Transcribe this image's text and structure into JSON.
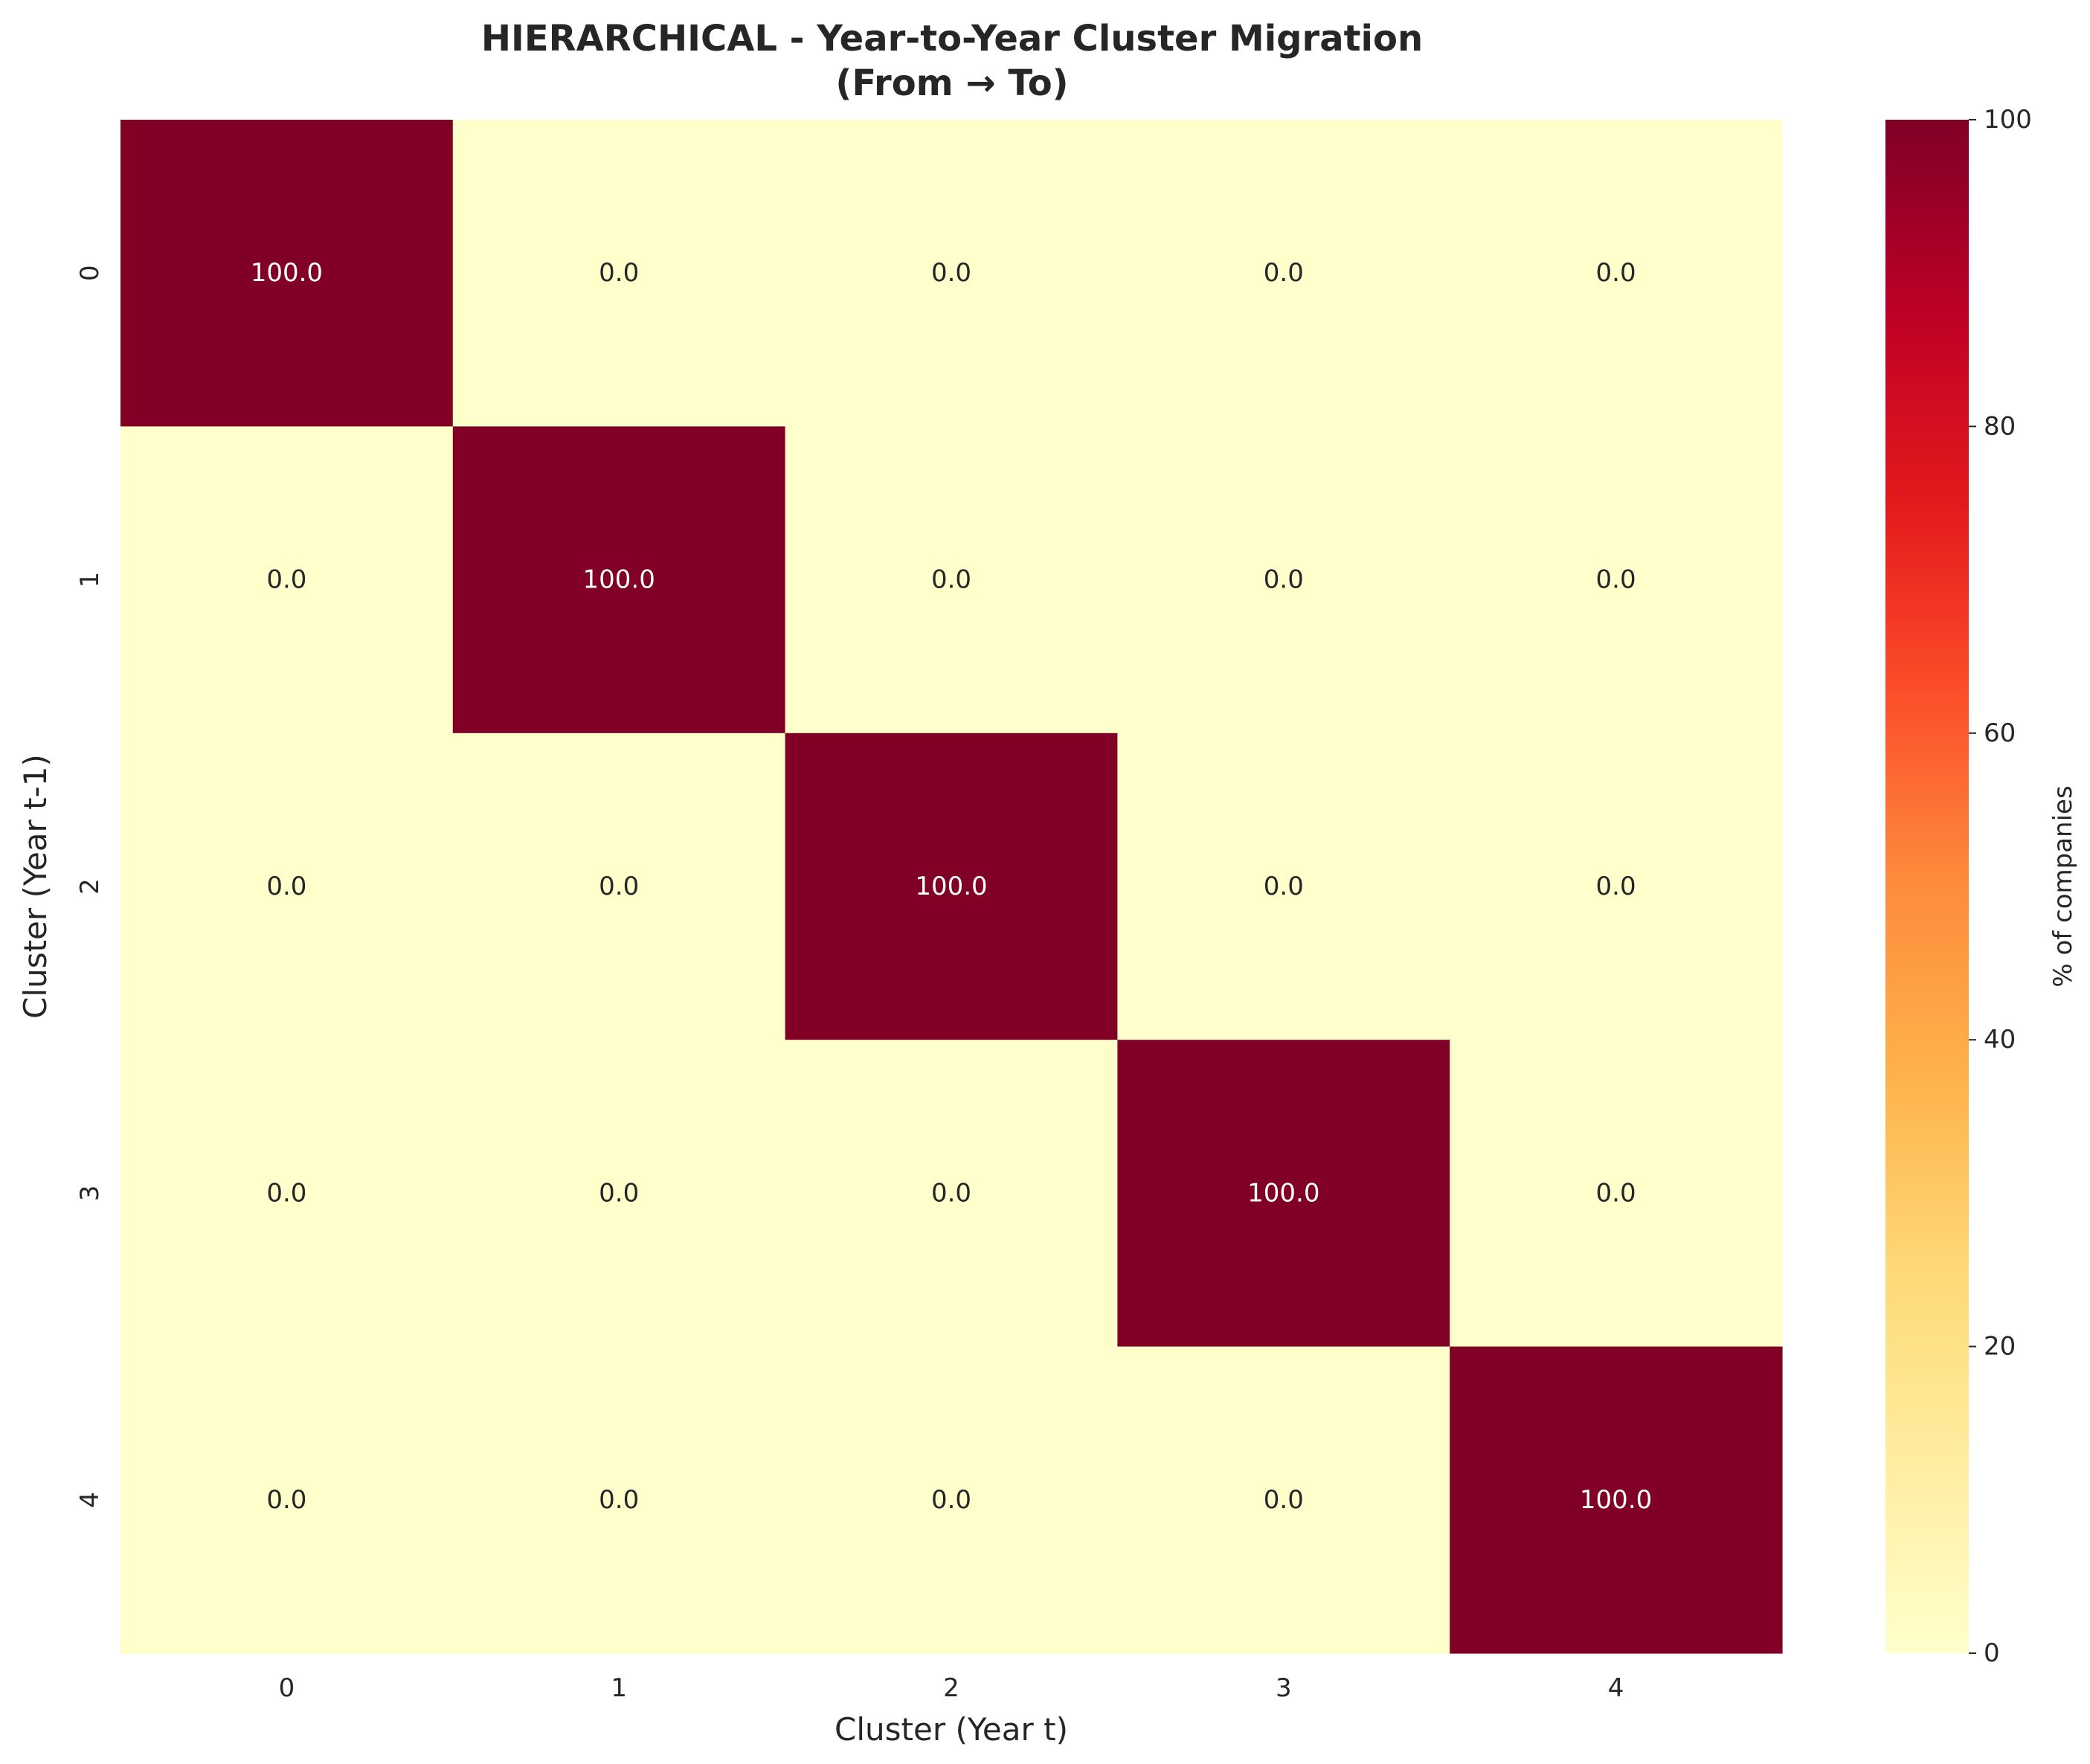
{
  "chart_data": {
    "type": "heatmap",
    "title_lines": [
      "HIERARCHICAL - Year-to-Year Cluster Migration",
      "(From → To)"
    ],
    "xlabel": "Cluster (Year t)",
    "ylabel": "Cluster (Year t-1)",
    "x_categories": [
      "0",
      "1",
      "2",
      "3",
      "4"
    ],
    "y_categories": [
      "0",
      "1",
      "2",
      "3",
      "4"
    ],
    "values": [
      [
        100.0,
        0.0,
        0.0,
        0.0,
        0.0
      ],
      [
        0.0,
        100.0,
        0.0,
        0.0,
        0.0
      ],
      [
        0.0,
        0.0,
        100.0,
        0.0,
        0.0
      ],
      [
        0.0,
        0.0,
        0.0,
        100.0,
        0.0
      ],
      [
        0.0,
        0.0,
        0.0,
        0.0,
        100.0
      ]
    ],
    "value_format": "0.0",
    "colormap": "YlOrRd",
    "colorbar": {
      "label": "% of companies",
      "range": [
        0,
        100
      ],
      "ticks": [
        0,
        20,
        40,
        60,
        80,
        100
      ]
    },
    "colorscale_stops": [
      "#ffffcc",
      "#ffeda0",
      "#fed976",
      "#feb24c",
      "#fd8d3c",
      "#fc4e2a",
      "#e31a1c",
      "#bd0026",
      "#800026"
    ],
    "annotation_colors": {
      "light_cell": "#262626",
      "dark_cell": "#ffffff"
    }
  }
}
